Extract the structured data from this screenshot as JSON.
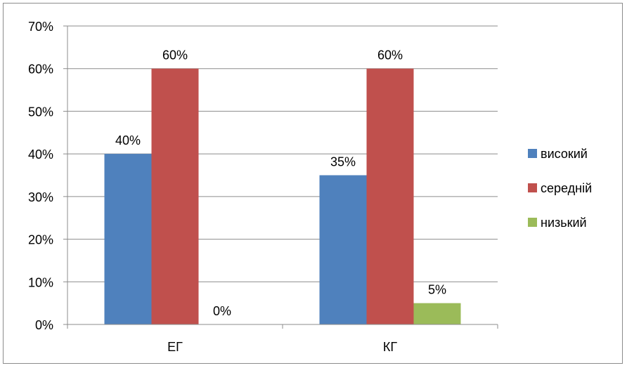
{
  "chart_data": {
    "type": "bar",
    "categories": [
      "ЕГ",
      "КГ"
    ],
    "series": [
      {
        "name": "високий",
        "values": [
          40,
          35
        ],
        "labels": [
          "40%",
          "35%"
        ],
        "color": "#4f81bd"
      },
      {
        "name": "середній",
        "values": [
          60,
          60
        ],
        "labels": [
          "60%",
          "60%"
        ],
        "color": "#c0504d"
      },
      {
        "name": "низький",
        "values": [
          0,
          5
        ],
        "labels": [
          "0%",
          "5%"
        ],
        "color": "#9bbb59"
      }
    ],
    "ylim": [
      0,
      70
    ],
    "yticks": [
      "0%",
      "10%",
      "20%",
      "30%",
      "40%",
      "50%",
      "60%",
      "70%"
    ],
    "grid": true,
    "legend": "right"
  }
}
